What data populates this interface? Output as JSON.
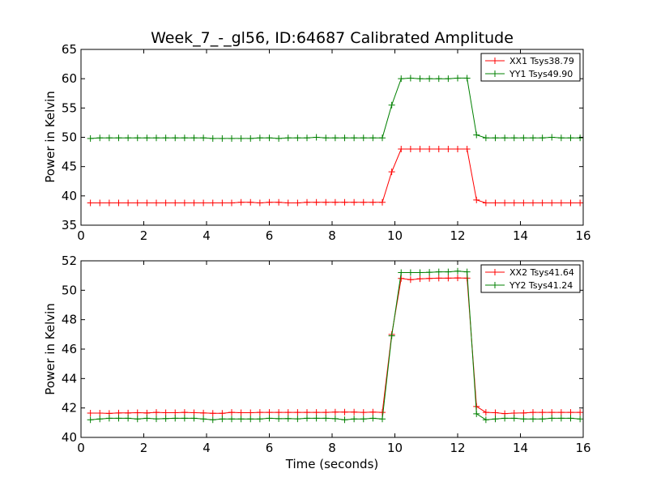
{
  "chart_data": [
    {
      "type": "line",
      "title": "Week_7_-_gl56, ID:64687 Calibrated Amplitude",
      "xlabel": "",
      "ylabel": "Power in Kelvin",
      "xlim": [
        0,
        16
      ],
      "ylim": [
        35,
        65
      ],
      "xticks": [
        "0",
        "2",
        "4",
        "6",
        "8",
        "10",
        "12",
        "14",
        "16"
      ],
      "yticks": [
        "35",
        "40",
        "45",
        "50",
        "55",
        "60",
        "65"
      ],
      "grid": false,
      "legend": "top-right",
      "x": [
        0.3,
        0.6,
        0.9,
        1.2,
        1.5,
        1.8,
        2.1,
        2.4,
        2.7,
        3.0,
        3.3,
        3.6,
        3.9,
        4.2,
        4.5,
        4.8,
        5.1,
        5.4,
        5.7,
        6.0,
        6.3,
        6.6,
        6.9,
        7.2,
        7.5,
        7.8,
        8.1,
        8.4,
        8.7,
        9.0,
        9.3,
        9.6,
        9.9,
        10.2,
        10.5,
        10.8,
        11.1,
        11.4,
        11.7,
        12.0,
        12.3,
        12.6,
        12.9,
        13.2,
        13.5,
        13.8,
        14.1,
        14.4,
        14.7,
        15.0,
        15.3,
        15.6,
        15.9
      ],
      "series": [
        {
          "name": "XX1 Tsys38.79",
          "color": "#ff0000",
          "values": [
            38.8,
            38.8,
            38.8,
            38.8,
            38.8,
            38.8,
            38.8,
            38.8,
            38.8,
            38.8,
            38.8,
            38.8,
            38.8,
            38.8,
            38.8,
            38.8,
            38.9,
            38.9,
            38.8,
            38.9,
            38.9,
            38.8,
            38.8,
            38.9,
            38.9,
            38.9,
            38.9,
            38.9,
            38.9,
            38.9,
            38.9,
            38.9,
            44.1,
            48.0,
            48.0,
            48.0,
            48.0,
            48.0,
            48.0,
            48.0,
            48.0,
            39.3,
            38.8,
            38.8,
            38.8,
            38.8,
            38.8,
            38.8,
            38.8,
            38.8,
            38.8,
            38.8,
            38.8
          ]
        },
        {
          "name": "YY1 Tsys49.90",
          "color": "#008000",
          "values": [
            49.8,
            49.9,
            49.9,
            49.9,
            49.9,
            49.9,
            49.9,
            49.9,
            49.9,
            49.9,
            49.9,
            49.9,
            49.9,
            49.8,
            49.8,
            49.8,
            49.8,
            49.8,
            49.9,
            49.9,
            49.8,
            49.9,
            49.9,
            49.9,
            50.0,
            49.9,
            49.9,
            49.9,
            49.9,
            49.9,
            49.9,
            49.9,
            55.5,
            60.0,
            60.1,
            60.0,
            60.0,
            60.0,
            60.0,
            60.1,
            60.1,
            50.4,
            49.9,
            49.9,
            49.9,
            49.9,
            49.9,
            49.9,
            49.9,
            50.0,
            49.9,
            49.9,
            49.9
          ]
        }
      ]
    },
    {
      "type": "line",
      "title": "",
      "xlabel": "Time (seconds)",
      "ylabel": "Power in Kelvin",
      "xlim": [
        0,
        16
      ],
      "ylim": [
        40,
        52
      ],
      "xticks": [
        "0",
        "2",
        "4",
        "6",
        "8",
        "10",
        "12",
        "14",
        "16"
      ],
      "yticks": [
        "40",
        "42",
        "44",
        "46",
        "48",
        "50",
        "52"
      ],
      "grid": false,
      "legend": "top-right",
      "x": [
        0.3,
        0.6,
        0.9,
        1.2,
        1.5,
        1.8,
        2.1,
        2.4,
        2.7,
        3.0,
        3.3,
        3.6,
        3.9,
        4.2,
        4.5,
        4.8,
        5.1,
        5.4,
        5.7,
        6.0,
        6.3,
        6.6,
        6.9,
        7.2,
        7.5,
        7.8,
        8.1,
        8.4,
        8.7,
        9.0,
        9.3,
        9.6,
        9.9,
        10.2,
        10.5,
        10.8,
        11.1,
        11.4,
        11.7,
        12.0,
        12.3,
        12.6,
        12.9,
        13.2,
        13.5,
        13.8,
        14.1,
        14.4,
        14.7,
        15.0,
        15.3,
        15.6,
        15.9
      ],
      "series": [
        {
          "name": "XX2 Tsys41.64",
          "color": "#ff0000",
          "values": [
            41.65,
            41.65,
            41.63,
            41.66,
            41.66,
            41.68,
            41.66,
            41.7,
            41.68,
            41.68,
            41.7,
            41.68,
            41.66,
            41.64,
            41.64,
            41.7,
            41.68,
            41.68,
            41.7,
            41.7,
            41.7,
            41.7,
            41.7,
            41.7,
            41.7,
            41.7,
            41.72,
            41.72,
            41.72,
            41.7,
            41.72,
            41.7,
            47.0,
            50.8,
            50.72,
            50.78,
            50.8,
            50.82,
            50.82,
            50.84,
            50.82,
            42.1,
            41.7,
            41.68,
            41.62,
            41.65,
            41.66,
            41.7,
            41.7,
            41.7,
            41.7,
            41.7,
            41.7
          ]
        },
        {
          "name": "YY2 Tsys41.24",
          "color": "#008000",
          "values": [
            41.2,
            41.25,
            41.3,
            41.3,
            41.3,
            41.25,
            41.3,
            41.26,
            41.28,
            41.3,
            41.3,
            41.3,
            41.25,
            41.2,
            41.25,
            41.25,
            41.25,
            41.25,
            41.25,
            41.3,
            41.27,
            41.28,
            41.26,
            41.3,
            41.3,
            41.3,
            41.27,
            41.2,
            41.25,
            41.25,
            41.3,
            41.25,
            46.9,
            51.2,
            51.2,
            51.2,
            51.22,
            51.25,
            51.25,
            51.3,
            51.25,
            41.6,
            41.2,
            41.25,
            41.3,
            41.3,
            41.25,
            41.25,
            41.25,
            41.3,
            41.3,
            41.3,
            41.25
          ]
        }
      ]
    }
  ]
}
